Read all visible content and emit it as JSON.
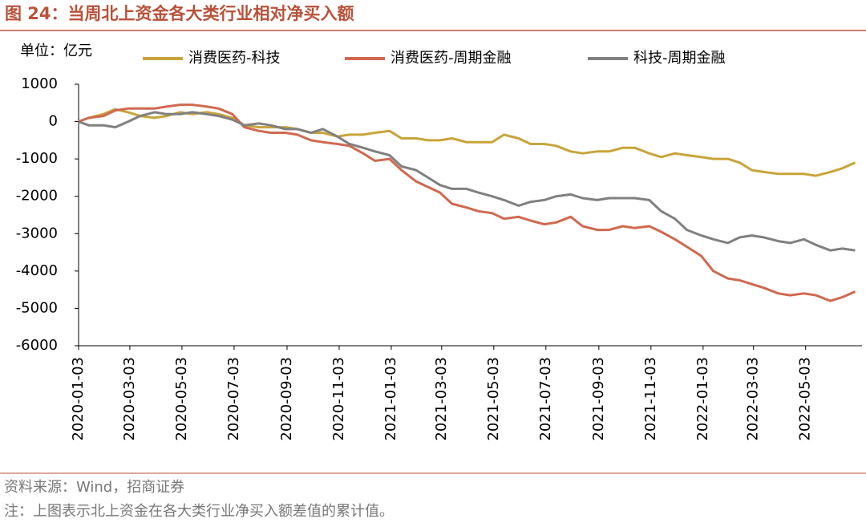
{
  "chart_data": {
    "type": "line",
    "title": "图 24：当周北上资金各大类行业相对净买入额",
    "unit_label": "单位：亿元",
    "source": "资料来源：Wind，招商证券",
    "note": "注：上图表示北上资金在各大类行业净买入额差值的累计值。",
    "x": [
      "2020-01-03",
      "2020-01-15",
      "2020-02-01",
      "2020-02-15",
      "2020-03-01",
      "2020-03-15",
      "2020-04-01",
      "2020-04-15",
      "2020-05-01",
      "2020-05-15",
      "2020-06-01",
      "2020-06-15",
      "2020-07-01",
      "2020-07-15",
      "2020-08-01",
      "2020-08-15",
      "2020-09-01",
      "2020-09-15",
      "2020-10-01",
      "2020-10-15",
      "2020-11-01",
      "2020-11-15",
      "2020-12-01",
      "2020-12-15",
      "2021-01-01",
      "2021-01-15",
      "2021-02-01",
      "2021-02-15",
      "2021-03-01",
      "2021-03-15",
      "2021-04-01",
      "2021-04-15",
      "2021-05-01",
      "2021-05-15",
      "2021-06-01",
      "2021-06-15",
      "2021-07-01",
      "2021-07-15",
      "2021-08-01",
      "2021-08-15",
      "2021-09-01",
      "2021-09-15",
      "2021-10-01",
      "2021-10-15",
      "2021-11-01",
      "2021-11-15",
      "2021-12-01",
      "2021-12-15",
      "2022-01-01",
      "2022-01-15",
      "2022-02-01",
      "2022-02-15",
      "2022-03-01",
      "2022-03-15",
      "2022-04-01",
      "2022-04-15",
      "2022-05-01",
      "2022-05-15",
      "2022-06-01",
      "2022-06-15",
      "2022-06-30"
    ],
    "series": [
      {
        "name": "消费医药-科技",
        "color": "#c9a43a",
        "values": [
          0,
          100,
          200,
          330,
          250,
          150,
          100,
          150,
          250,
          200,
          250,
          200,
          100,
          -100,
          -150,
          -150,
          -150,
          -200,
          -300,
          -300,
          -400,
          -350,
          -350,
          -300,
          -250,
          -450,
          -450,
          -500,
          -500,
          -450,
          -550,
          -550,
          -550,
          -350,
          -450,
          -600,
          -600,
          -650,
          -800,
          -850,
          -800,
          -800,
          -700,
          -700,
          -850,
          -950,
          -850,
          -900,
          -950,
          -1000,
          -1000,
          -1100,
          -1300,
          -1350,
          -1400,
          -1400,
          -1400,
          -1450,
          -1350,
          -1250,
          -1100
        ]
      },
      {
        "name": "消费医药-周期金融",
        "color": "#d0694f",
        "values": [
          0,
          100,
          150,
          300,
          350,
          350,
          350,
          400,
          450,
          450,
          400,
          350,
          200,
          -150,
          -250,
          -300,
          -300,
          -350,
          -500,
          -550,
          -600,
          -650,
          -850,
          -1050,
          -1000,
          -1300,
          -1600,
          -1750,
          -1900,
          -2200,
          -2300,
          -2400,
          -2450,
          -2600,
          -2550,
          -2650,
          -2750,
          -2700,
          -2550,
          -2800,
          -2900,
          -2900,
          -2800,
          -2850,
          -2800,
          -2950,
          -3150,
          -3350,
          -3600,
          -4000,
          -4200,
          -4250,
          -4350,
          -4450,
          -4600,
          -4650,
          -4600,
          -4650,
          -4800,
          -4700,
          -4550
        ]
      },
      {
        "name": "科技-周期金融",
        "color": "#808080",
        "values": [
          0,
          -100,
          -100,
          -150,
          0,
          150,
          250,
          200,
          200,
          250,
          200,
          150,
          50,
          -100,
          -50,
          -100,
          -200,
          -200,
          -300,
          -200,
          -400,
          -600,
          -700,
          -800,
          -900,
          -1200,
          -1300,
          -1500,
          -1700,
          -1800,
          -1800,
          -1900,
          -2000,
          -2100,
          -2250,
          -2150,
          -2100,
          -2000,
          -1950,
          -2050,
          -2100,
          -2050,
          -2050,
          -2050,
          -2100,
          -2400,
          -2600,
          -2900,
          -3050,
          -3150,
          -3250,
          -3100,
          -3050,
          -3100,
          -3200,
          -3250,
          -3150,
          -3300,
          -3450,
          -3400,
          -3450
        ]
      }
    ],
    "xlim": [
      "2020-01-03",
      "2022-07-08"
    ],
    "xticks": [
      "2020-01-03",
      "2020-03-03",
      "2020-05-03",
      "2020-07-03",
      "2020-09-03",
      "2020-11-03",
      "2021-01-03",
      "2021-03-03",
      "2021-05-03",
      "2021-07-03",
      "2021-09-03",
      "2021-11-03",
      "2022-01-03",
      "2022-03-03",
      "2022-05-03"
    ],
    "ylim": [
      -6000,
      1000
    ],
    "yticks": [
      1000,
      0,
      -1000,
      -2000,
      -3000,
      -4000,
      -5000,
      -6000
    ],
    "grid": false
  }
}
